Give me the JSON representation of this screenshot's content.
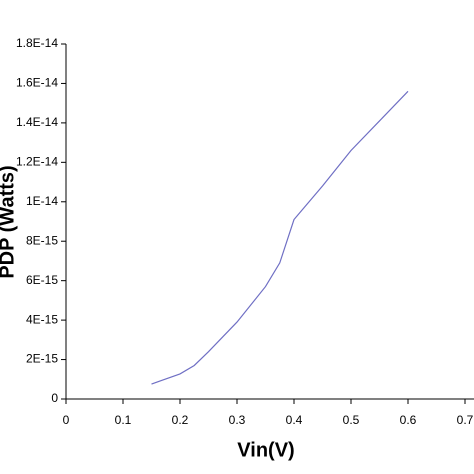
{
  "chart_data": {
    "type": "line",
    "x_label": "Vin(V)",
    "y_label": "PDP (Watts)",
    "x": [
      0.15,
      0.2,
      0.225,
      0.25,
      0.3,
      0.35,
      0.375,
      0.4,
      0.425,
      0.45,
      0.5,
      0.55,
      0.6
    ],
    "series": [
      {
        "name": "PDP",
        "color": "#6f6fc4",
        "values": [
          7.6e-16,
          1.27e-15,
          1.7e-15,
          2.4e-15,
          3.9e-15,
          5.7e-15,
          6.9e-15,
          9.1e-15,
          9.95e-15,
          1.08e-14,
          1.26e-14,
          1.41e-14,
          1.56e-14
        ]
      }
    ],
    "xlim": [
      0,
      0.7
    ],
    "xticks": [
      0,
      0.1,
      0.2,
      0.3,
      0.4,
      0.5,
      0.6,
      0.7
    ],
    "ylim": [
      0,
      1.8e-14
    ],
    "yticks": [
      0,
      {
        "value": 2e-15,
        "label": "2E-15"
      },
      {
        "value": 4e-15,
        "label": "4E-15"
      },
      {
        "value": 6e-15,
        "label": "6E-15"
      },
      {
        "value": 8e-15,
        "label": "8E-15"
      },
      {
        "value": 1e-14,
        "label": "1E-14"
      },
      {
        "value": 1.2e-14,
        "label": "1.2E-14"
      },
      {
        "value": 1.4e-14,
        "label": "1.4E-14"
      },
      {
        "value": 1.6e-14,
        "label": "1.6E-14"
      },
      {
        "value": 1.8e-14,
        "label": "1.8E-14"
      }
    ],
    "grid": false
  }
}
